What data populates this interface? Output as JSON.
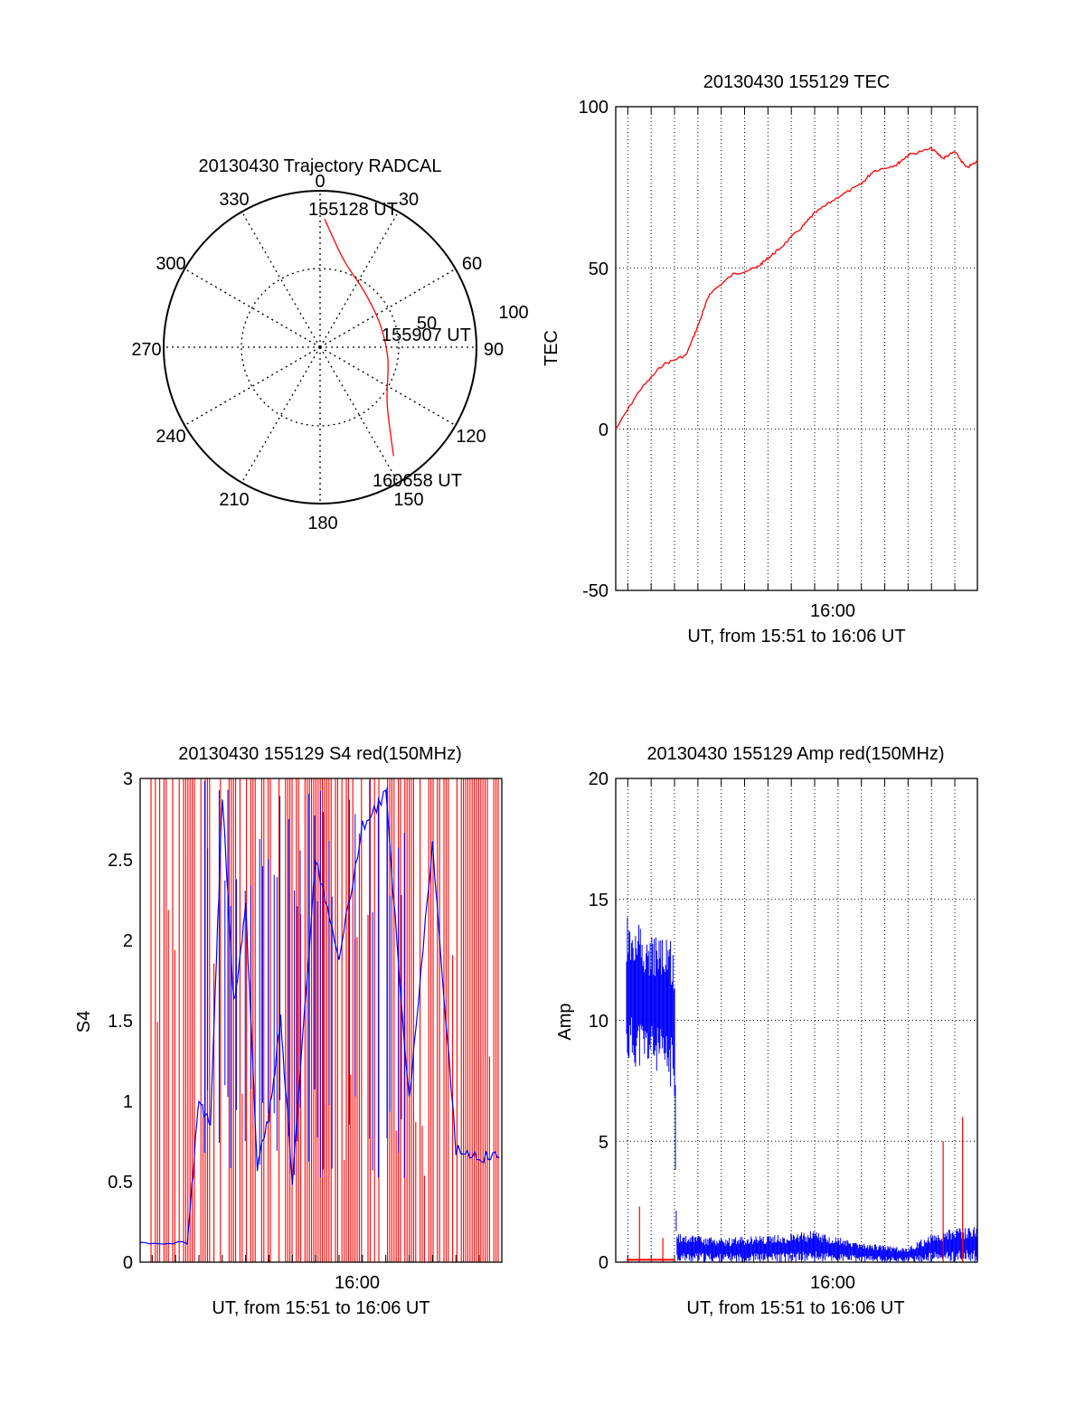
{
  "chart_data": [
    {
      "type": "polar",
      "title": "20130430 Trajectory RADCAL",
      "azimuth_labels": [
        "0",
        "30",
        "60",
        "90",
        "120",
        "150",
        "180",
        "210",
        "240",
        "270",
        "300",
        "330"
      ],
      "radial_labels": [
        "50",
        "100"
      ],
      "rlim": [
        0,
        100
      ],
      "grid": true,
      "series": [
        {
          "color": "#ff0000",
          "points": [
            {
              "az": 2,
              "r": 82
            },
            {
              "az": 15,
              "r": 58
            },
            {
              "az": 40,
              "r": 45
            },
            {
              "az": 70,
              "r": 41
            },
            {
              "az": 100,
              "r": 44
            },
            {
              "az": 130,
              "r": 56
            },
            {
              "az": 146,
              "r": 84
            }
          ]
        }
      ],
      "annotations": [
        {
          "text": "155128 UT"
        },
        {
          "text": "155907 UT"
        },
        {
          "text": "160658 UT"
        }
      ]
    },
    {
      "type": "line",
      "title": "20130430 155129 TEC",
      "xlabel": "UT, from 15:51 to 16:06 UT",
      "ylabel": "TEC",
      "xlim": [
        "15:51:29",
        "16:06:58"
      ],
      "ylim": [
        -50,
        100
      ],
      "yticks": [
        "-50",
        "0",
        "50",
        "100"
      ],
      "xticks": [
        "16:00"
      ],
      "grid": true,
      "series": [
        {
          "color": "#ff0000",
          "x": [
            "15:51:29",
            "15:52:30",
            "15:53:30",
            "15:54:30",
            "15:55:00",
            "15:55:30",
            "15:56:30",
            "15:57:30",
            "15:58:00",
            "15:58:30",
            "15:59:30",
            "16:00:00",
            "16:01:00",
            "16:02:00",
            "16:02:30",
            "16:03:30",
            "16:04:00",
            "16:05:00",
            "16:05:30",
            "16:06:00",
            "16:06:30",
            "16:06:58"
          ],
          "y": [
            0,
            12,
            20,
            23,
            32,
            42,
            48,
            50,
            53,
            56,
            63,
            67,
            72,
            76,
            80,
            82,
            85,
            87,
            84,
            86,
            81,
            83
          ]
        }
      ]
    },
    {
      "type": "line",
      "title": "20130430 155129 S4 red(150MHz)",
      "xlabel": "UT, from 15:51 to 16:06 UT",
      "ylabel": "S4",
      "xlim": [
        "15:51:29",
        "16:06:58"
      ],
      "ylim": [
        0,
        3
      ],
      "yticks": [
        "0",
        "0.5",
        "1",
        "1.5",
        "2",
        "2.5",
        "3"
      ],
      "xticks": [
        "16:00"
      ],
      "grid": true,
      "series": [
        {
          "color": "#ff0000",
          "style": "dense vertical spikes",
          "y_range": [
            0,
            3
          ]
        },
        {
          "color": "#0000ff",
          "x": [
            "15:51:29",
            "15:53:30",
            "15:54:00",
            "15:54:30",
            "15:55:00",
            "15:55:30",
            "15:56:00",
            "15:56:30",
            "15:57:00",
            "15:57:30",
            "15:58:00",
            "15:59:00",
            "16:00:00",
            "16:01:00",
            "16:02:00",
            "16:03:00",
            "16:04:00",
            "16:05:00",
            "16:06:00",
            "16:06:58"
          ],
          "y": [
            0.12,
            0.12,
            1.0,
            0.85,
            2.9,
            1.6,
            2.2,
            0.6,
            0.9,
            1.5,
            0.5,
            2.5,
            1.9,
            2.7,
            2.9,
            1.0,
            2.6,
            0.7,
            0.65,
            0.65
          ]
        }
      ]
    },
    {
      "type": "line",
      "title": "20130430 155129 Amp red(150MHz)",
      "xlabel": "UT, from 15:51 to 16:06 UT",
      "ylabel": "Amp",
      "xlim": [
        "15:51:29",
        "16:06:58"
      ],
      "ylim": [
        0,
        20
      ],
      "yticks": [
        "0",
        "5",
        "10",
        "15",
        "20"
      ],
      "xticks": [
        "16:00"
      ],
      "grid": true,
      "series": [
        {
          "color": "#0000ff",
          "x": [
            "15:51:29",
            "15:52:00",
            "15:53:00",
            "15:54:00",
            "15:54:05",
            "15:56:00",
            "15:58:00",
            "16:00:00",
            "16:02:00",
            "16:04:00",
            "16:05:00",
            "16:06:00",
            "16:06:58"
          ],
          "y_min": [
            7.5,
            8,
            8,
            7,
            0,
            0,
            0,
            0,
            0,
            0,
            0,
            0,
            0
          ],
          "y_max": [
            14.5,
            14.5,
            13.5,
            13.5,
            1.2,
            1.0,
            1.1,
            1.3,
            0.8,
            0.6,
            1.2,
            1.4,
            1.5
          ]
        },
        {
          "color": "#ff0000",
          "x": [
            "15:51:29",
            "15:54:00"
          ],
          "y": [
            0.1,
            0.1
          ],
          "spikes": [
            {
              "x": "15:52:30",
              "y": 2.3
            },
            {
              "x": "15:53:30",
              "y": 1.0
            },
            {
              "x": "16:05:30",
              "y": 5.0
            },
            {
              "x": "16:06:20",
              "y": 6.0
            }
          ]
        }
      ]
    }
  ]
}
